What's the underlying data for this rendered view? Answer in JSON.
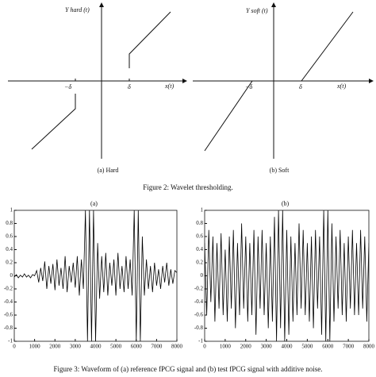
{
  "figure2": {
    "panels": [
      {
        "y_label": "Y hard (t)",
        "x_label": "x(t)",
        "neg_label": "−δ",
        "pos_label": "δ",
        "caption": "(a)  Hard"
      },
      {
        "y_label": "Y soft (t)",
        "x_label": "x(t)",
        "neg_label": "−δ",
        "pos_label": "δ",
        "caption": "(b)  Soft"
      }
    ],
    "caption": "Figure 2: Wavelet thresholding."
  },
  "chart_data": [
    {
      "type": "line",
      "label": "(a)",
      "color": "#000000",
      "x": [
        0,
        100,
        200,
        300,
        400,
        500,
        600,
        700,
        800,
        900,
        1000,
        1100,
        1200,
        1300,
        1400,
        1500,
        1600,
        1700,
        1800,
        1900,
        2000,
        2100,
        2200,
        2300,
        2400,
        2500,
        2600,
        2700,
        2800,
        2900,
        3000,
        3100,
        3200,
        3300,
        3400,
        3500,
        3600,
        3700,
        3800,
        3900,
        4000,
        4100,
        4200,
        4300,
        4400,
        4500,
        4600,
        4700,
        4800,
        4900,
        5000,
        5100,
        5200,
        5300,
        5400,
        5500,
        5600,
        5700,
        5800,
        5900,
        6000,
        6100,
        6200,
        6300,
        6400,
        6500,
        6600,
        6700,
        6800,
        6900,
        7000,
        7100,
        7200,
        7300,
        7400,
        7500,
        7600,
        7700,
        7800,
        7900,
        8000
      ],
      "values": [
        -0.02,
        0.02,
        -0.03,
        0.01,
        -0.02,
        0.03,
        -0.02,
        0.01,
        -0.03,
        0.02,
        0.0,
        0.08,
        -0.1,
        0.12,
        -0.08,
        0.22,
        -0.2,
        0.15,
        -0.12,
        0.18,
        -0.22,
        0.25,
        -0.15,
        0.12,
        -0.2,
        0.3,
        -0.25,
        0.15,
        -0.1,
        0.2,
        -0.18,
        0.3,
        -0.3,
        0.25,
        -0.2,
        1,
        -1,
        1,
        -1,
        1,
        -1,
        0.5,
        -0.35,
        0.3,
        -0.25,
        0.35,
        -0.3,
        0.2,
        -0.15,
        0.25,
        -0.3,
        0.35,
        -0.2,
        0.15,
        -0.25,
        0.3,
        -0.2,
        0.25,
        -0.3,
        1,
        -1,
        1,
        -1,
        0.6,
        -0.3,
        0.25,
        -0.2,
        0.15,
        -0.25,
        0.2,
        -0.15,
        0.1,
        -0.2,
        0.15,
        -0.1,
        0.2,
        -0.15,
        0.1,
        -0.12,
        0.08,
        0.05
      ],
      "xlim": [
        0,
        8000
      ],
      "xticks": [
        0,
        1000,
        2000,
        3000,
        4000,
        5000,
        6000,
        7000,
        8000
      ],
      "ylim": [
        -1,
        1
      ],
      "yticks": [
        -1,
        -0.8,
        -0.6,
        -0.4,
        -0.2,
        0,
        0.2,
        0.4,
        0.6,
        0.8,
        1
      ]
    },
    {
      "type": "line",
      "label": "(b)",
      "color": "#000000",
      "x": [
        0,
        100,
        200,
        300,
        400,
        500,
        600,
        700,
        800,
        900,
        1000,
        1100,
        1200,
        1300,
        1400,
        1500,
        1600,
        1700,
        1800,
        1900,
        2000,
        2100,
        2200,
        2300,
        2400,
        2500,
        2600,
        2700,
        2800,
        2900,
        3000,
        3100,
        3200,
        3300,
        3400,
        3500,
        3600,
        3700,
        3800,
        3900,
        4000,
        4100,
        4200,
        4300,
        4400,
        4500,
        4600,
        4700,
        4800,
        4900,
        5000,
        5100,
        5200,
        5300,
        5400,
        5500,
        5600,
        5700,
        5800,
        5900,
        6000,
        6100,
        6200,
        6300,
        6400,
        6500,
        6600,
        6700,
        6800,
        6900,
        7000,
        7100,
        7200,
        7300,
        7400,
        7500,
        7600,
        7700,
        7800,
        7900,
        8000
      ],
      "values": [
        0.5,
        -0.6,
        0.7,
        -0.4,
        0.6,
        -0.7,
        0.5,
        -0.5,
        0.65,
        -0.6,
        0.4,
        -0.7,
        0.6,
        -0.5,
        0.7,
        -0.8,
        0.5,
        -0.6,
        0.8,
        -0.5,
        0.6,
        -0.7,
        0.5,
        -0.6,
        0.7,
        -0.9,
        0.6,
        -0.5,
        0.7,
        -0.6,
        0.5,
        -0.8,
        0.6,
        -0.7,
        0.9,
        -1,
        1,
        -0.8,
        1,
        -1,
        0.7,
        -0.9,
        0.6,
        -0.7,
        0.5,
        -0.6,
        0.8,
        -0.5,
        0.7,
        -0.6,
        0.5,
        -0.7,
        0.6,
        -0.8,
        0.7,
        -0.5,
        0.6,
        -0.9,
        1,
        -1,
        1,
        -1,
        0.8,
        -0.7,
        0.6,
        -0.5,
        0.7,
        -0.6,
        0.5,
        -0.7,
        0.6,
        -0.5,
        0.7,
        -0.6,
        0.5,
        -0.6,
        0.7,
        -0.5,
        0.6,
        -0.7,
        0.5
      ],
      "xlim": [
        0,
        8000
      ],
      "xticks": [
        0,
        1000,
        2000,
        3000,
        4000,
        5000,
        6000,
        7000,
        8000
      ],
      "ylim": [
        -1,
        1
      ],
      "yticks": [
        -1,
        -0.8,
        -0.6,
        -0.4,
        -0.2,
        0,
        0.2,
        0.4,
        0.6,
        0.8,
        1
      ]
    }
  ],
  "figure3_caption": "Figure 3: Waveform of (a) reference fPCG signal and (b) test fPCG signal with additive noise."
}
